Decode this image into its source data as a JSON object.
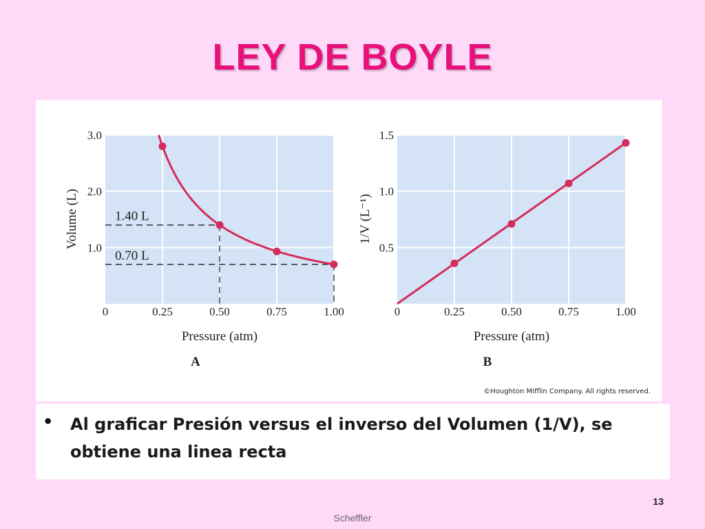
{
  "slide": {
    "title": "LEY DE BOYLE",
    "bullet": "Al graficar Presión versus el inverso del Volumen (1/V), se obtiene una linea recta",
    "page_number": "13",
    "footer": "Scheffler",
    "copyright": "©Houghton Mifflin Company. All rights reserved."
  },
  "colors": {
    "accent": "#e8107a",
    "curve": "#d42c5c",
    "plot_bg": "#d4e3f5",
    "background": "#ffd9f8"
  },
  "chart_data": [
    {
      "type": "line",
      "panel_label": "A",
      "xlabel": "Pressure (atm)",
      "ylabel": "Volume (L)",
      "xlim": [
        0,
        1.0
      ],
      "ylim": [
        0,
        3.0
      ],
      "x_ticks": [
        "0",
        "0.25",
        "0.50",
        "0.75",
        "1.00"
      ],
      "y_ticks": [
        "1.0",
        "2.0",
        "3.0"
      ],
      "grid": true,
      "series": [
        {
          "x": [
            0.25,
            0.5,
            0.75,
            1.0
          ],
          "y": [
            2.8,
            1.4,
            0.93,
            0.7
          ],
          "curve": "V = 0.70 / P"
        }
      ],
      "annotations": [
        {
          "text": "1.40 L",
          "x": 0.5,
          "y": 1.4
        },
        {
          "text": "0.70 L",
          "x": 1.0,
          "y": 0.7
        }
      ]
    },
    {
      "type": "line",
      "panel_label": "B",
      "xlabel": "Pressure (atm)",
      "ylabel": "1/V (L⁻¹)",
      "xlim": [
        0,
        1.0
      ],
      "ylim": [
        0,
        1.5
      ],
      "x_ticks": [
        "0",
        "0.25",
        "0.50",
        "0.75",
        "1.00"
      ],
      "y_ticks": [
        "0.5",
        "1.0",
        "1.5"
      ],
      "grid": true,
      "series": [
        {
          "x": [
            0.25,
            0.5,
            0.75,
            1.0
          ],
          "y": [
            0.36,
            0.71,
            1.07,
            1.43
          ]
        }
      ]
    }
  ]
}
